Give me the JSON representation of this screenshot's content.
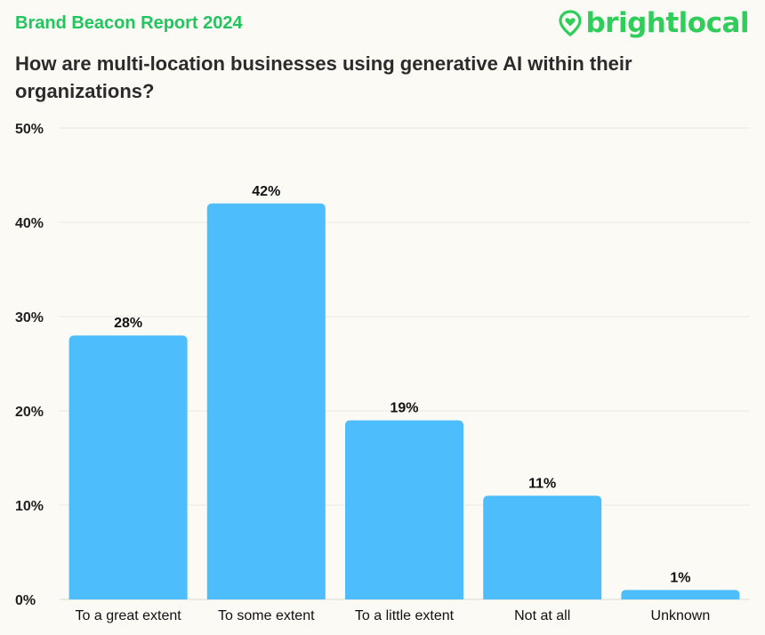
{
  "header": {
    "report_title": "Brand Beacon Report 2024",
    "brand_name": "brightlocal",
    "brand_icon": "location-pin-heart-icon",
    "brand_color": "#2fce5b"
  },
  "chart_data": {
    "type": "bar",
    "title": "How are multi-location businesses using generative AI within their organizations?",
    "categories": [
      "To a great extent",
      "To some extent",
      "To a little extent",
      "Not at all",
      "Unknown"
    ],
    "values": [
      28,
      42,
      19,
      11,
      1
    ],
    "data_labels": [
      "28%",
      "42%",
      "19%",
      "11%",
      "1%"
    ],
    "ylim": [
      0,
      50
    ],
    "yticks": [
      0,
      10,
      20,
      30,
      40,
      50
    ],
    "ytick_labels": [
      "0%",
      "10%",
      "20%",
      "30%",
      "40%",
      "50%"
    ],
    "xlabel": "",
    "ylabel": "",
    "grid": true,
    "bar_color": "#4dbdfb"
  }
}
